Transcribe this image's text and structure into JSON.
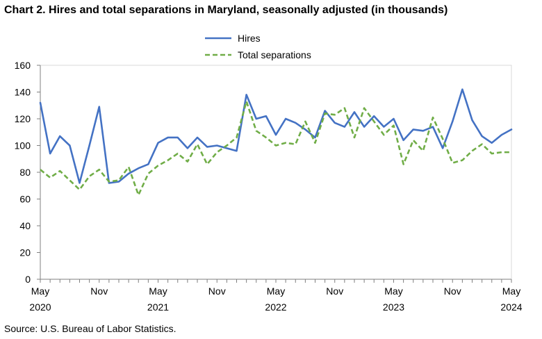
{
  "title": "Chart 2. Hires and total separations in Maryland, seasonally adjusted (in thousands)",
  "source": "Source: U.S. Bureau of Labor Statistics.",
  "colors": {
    "hires": "#4472C4",
    "separations": "#70AD47",
    "axis": "#7f7f7f",
    "grid": "#d9d9d9"
  },
  "chart_data": {
    "type": "line",
    "title": "Chart 2. Hires and total separations in Maryland, seasonally adjusted (in thousands)",
    "xlabel": "",
    "ylabel": "",
    "ylim": [
      0,
      160
    ],
    "yticks": [
      0,
      20,
      40,
      60,
      80,
      100,
      120,
      140,
      160
    ],
    "grid": false,
    "legend_position": "top-center",
    "x_tick_labels": [
      {
        "index": 0,
        "month": "May",
        "year": "2020"
      },
      {
        "index": 6,
        "month": "Nov",
        "year": ""
      },
      {
        "index": 12,
        "month": "May",
        "year": "2021"
      },
      {
        "index": 18,
        "month": "Nov",
        "year": ""
      },
      {
        "index": 24,
        "month": "May",
        "year": "2022"
      },
      {
        "index": 30,
        "month": "Nov",
        "year": ""
      },
      {
        "index": 36,
        "month": "May",
        "year": "2023"
      },
      {
        "index": 42,
        "month": "Nov",
        "year": ""
      },
      {
        "index": 48,
        "month": "May",
        "year": "2024"
      }
    ],
    "x": [
      "2020-05",
      "2020-06",
      "2020-07",
      "2020-08",
      "2020-09",
      "2020-10",
      "2020-11",
      "2020-12",
      "2021-01",
      "2021-02",
      "2021-03",
      "2021-04",
      "2021-05",
      "2021-06",
      "2021-07",
      "2021-08",
      "2021-09",
      "2021-10",
      "2021-11",
      "2021-12",
      "2022-01",
      "2022-02",
      "2022-03",
      "2022-04",
      "2022-05",
      "2022-06",
      "2022-07",
      "2022-08",
      "2022-09",
      "2022-10",
      "2022-11",
      "2022-12",
      "2023-01",
      "2023-02",
      "2023-03",
      "2023-04",
      "2023-05",
      "2023-06",
      "2023-07",
      "2023-08",
      "2023-09",
      "2023-10",
      "2023-11",
      "2023-12",
      "2024-01",
      "2024-02",
      "2024-03",
      "2024-04",
      "2024-05"
    ],
    "series": [
      {
        "name": "Hires",
        "style": "solid",
        "values": [
          132,
          94,
          107,
          100,
          72,
          100,
          129,
          72,
          73,
          79,
          83,
          86,
          102,
          106,
          106,
          98,
          106,
          99,
          100,
          98,
          96,
          138,
          120,
          122,
          108,
          120,
          117,
          112,
          106,
          126,
          117,
          114,
          125,
          114,
          122,
          114,
          120,
          104,
          112,
          111,
          114,
          98,
          118,
          142,
          119,
          107,
          102,
          108,
          112
        ]
      },
      {
        "name": "Total separations",
        "style": "dashed",
        "values": [
          82,
          76,
          81,
          74,
          67,
          77,
          82,
          73,
          74,
          84,
          63,
          79,
          85,
          89,
          94,
          88,
          101,
          86,
          95,
          100,
          106,
          133,
          111,
          106,
          100,
          102,
          101,
          118,
          102,
          124,
          123,
          128,
          106,
          128,
          118,
          108,
          115,
          86,
          104,
          96,
          121,
          105,
          87,
          89,
          96,
          101,
          94,
          95,
          95
        ]
      }
    ]
  }
}
